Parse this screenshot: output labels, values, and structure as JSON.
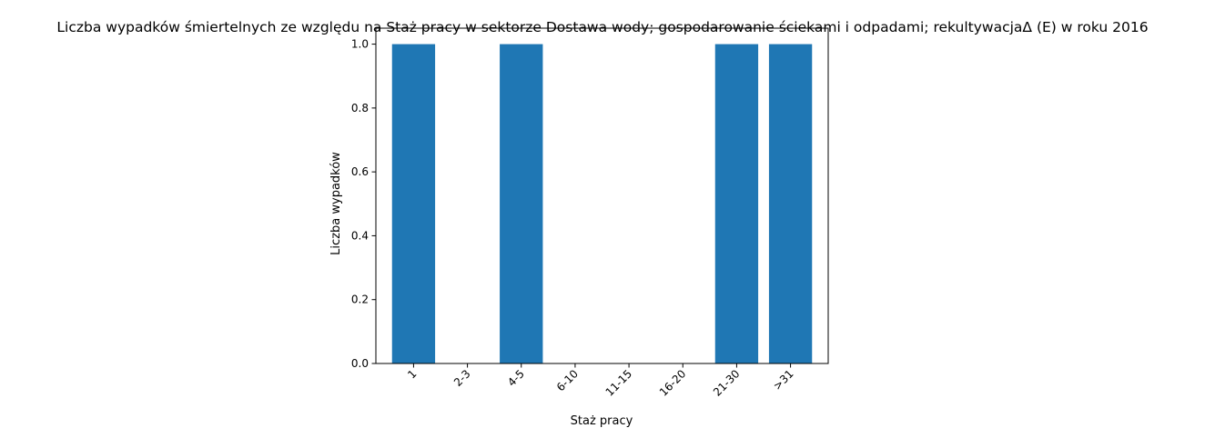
{
  "chart_data": {
    "type": "bar",
    "title": "Liczba wypadków śmiertelnych ze względu na Staż pracy w sektorze Dostawa wody; gospodarowanie ściekami i odpadami;  rekultywacjaΔ  (E) w roku 2016",
    "xlabel": "Staż pracy",
    "ylabel": "Liczba wypadków",
    "categories": [
      "1",
      "2-3",
      "4-5",
      "6-10",
      "11-15",
      "16-20",
      "21-30",
      ">31"
    ],
    "values": [
      1,
      0,
      1,
      0,
      0,
      0,
      1,
      1
    ],
    "ylim": [
      0,
      1.05
    ],
    "yticks": [
      0.0,
      0.2,
      0.4,
      0.6,
      0.8,
      1.0
    ],
    "ytick_labels": [
      "0.0",
      "0.2",
      "0.4",
      "0.6",
      "0.8",
      "1.0"
    ],
    "bar_color": "#1f77b4",
    "grid": false,
    "legend": false
  }
}
